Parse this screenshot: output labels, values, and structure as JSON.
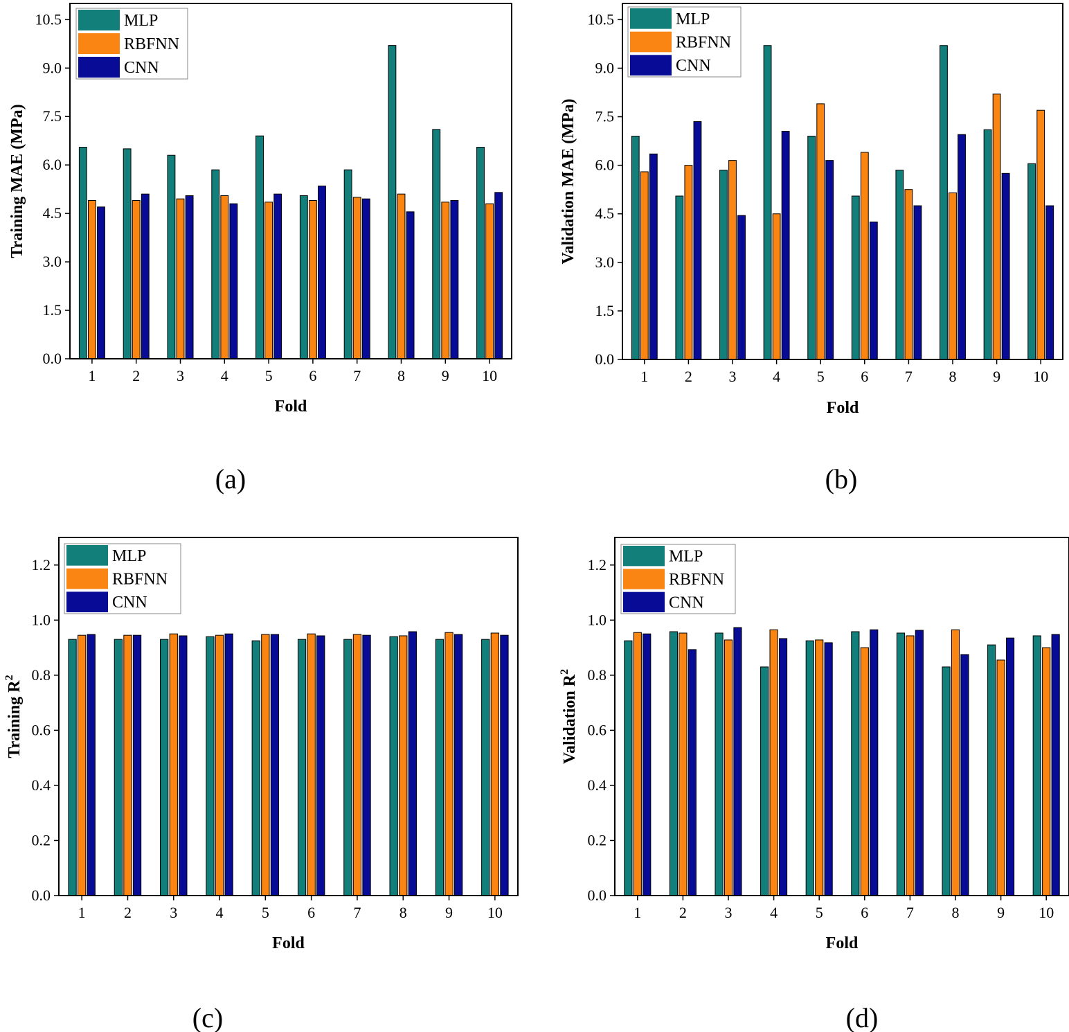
{
  "colors": {
    "MLP": "#137f7a",
    "RBFNN": "#fa8513",
    "CNN": "#080b96"
  },
  "chart_data": [
    {
      "type": "bar",
      "caption": "(a)",
      "xlabel": "Fold",
      "ylabel": "Training MAE (MPa)",
      "categories": [
        "1",
        "2",
        "3",
        "4",
        "5",
        "6",
        "7",
        "8",
        "9",
        "10"
      ],
      "yticks": [
        "0.0",
        "1.5",
        "3.0",
        "4.5",
        "6.0",
        "7.5",
        "9.0",
        "10.5"
      ],
      "ylim": [
        0,
        11
      ],
      "legend_position": "top-left",
      "series": [
        {
          "name": "MLP",
          "values": [
            6.55,
            6.5,
            6.3,
            5.85,
            6.9,
            5.05,
            5.85,
            9.7,
            7.1,
            6.55
          ]
        },
        {
          "name": "RBFNN",
          "values": [
            4.9,
            4.9,
            4.95,
            5.05,
            4.85,
            4.9,
            5.0,
            5.1,
            4.85,
            4.8
          ]
        },
        {
          "name": "CNN",
          "values": [
            4.7,
            5.1,
            5.05,
            4.8,
            5.1,
            5.35,
            4.95,
            4.55,
            4.9,
            5.15
          ]
        }
      ]
    },
    {
      "type": "bar",
      "caption": "(b)",
      "xlabel": "Fold",
      "ylabel": "Validation MAE (MPa)",
      "categories": [
        "1",
        "2",
        "3",
        "4",
        "5",
        "6",
        "7",
        "8",
        "9",
        "10"
      ],
      "yticks": [
        "0.0",
        "1.5",
        "3.0",
        "4.5",
        "6.0",
        "7.5",
        "9.0",
        "10.5"
      ],
      "ylim": [
        0,
        11
      ],
      "legend_position": "top-left",
      "series": [
        {
          "name": "MLP",
          "values": [
            6.9,
            5.05,
            5.85,
            9.7,
            6.9,
            5.05,
            5.85,
            9.7,
            7.1,
            6.05
          ]
        },
        {
          "name": "RBFNN",
          "values": [
            5.8,
            6.0,
            6.15,
            4.5,
            7.9,
            6.4,
            5.25,
            5.15,
            8.2,
            7.7
          ]
        },
        {
          "name": "CNN",
          "values": [
            6.35,
            7.35,
            4.45,
            7.05,
            6.15,
            4.25,
            4.75,
            6.95,
            5.75,
            4.75
          ]
        }
      ]
    },
    {
      "type": "bar",
      "caption": "(c)",
      "xlabel": "Fold",
      "ylabel": "Training R",
      "ylabel_sup": "2",
      "categories": [
        "1",
        "2",
        "3",
        "4",
        "5",
        "6",
        "7",
        "8",
        "9",
        "10"
      ],
      "yticks": [
        "0.0",
        "0.2",
        "0.4",
        "0.6",
        "0.8",
        "1.0",
        "1.2"
      ],
      "ylim": [
        0,
        1.3
      ],
      "legend_position": "top-left",
      "series": [
        {
          "name": "MLP",
          "values": [
            0.93,
            0.93,
            0.93,
            0.94,
            0.925,
            0.93,
            0.93,
            0.94,
            0.93,
            0.93
          ]
        },
        {
          "name": "RBFNN",
          "values": [
            0.945,
            0.945,
            0.95,
            0.945,
            0.948,
            0.95,
            0.948,
            0.943,
            0.955,
            0.953
          ]
        },
        {
          "name": "CNN",
          "values": [
            0.948,
            0.945,
            0.943,
            0.95,
            0.948,
            0.943,
            0.945,
            0.958,
            0.948,
            0.945
          ]
        }
      ]
    },
    {
      "type": "bar",
      "caption": "(d)",
      "xlabel": "Fold",
      "ylabel": "Validation R",
      "ylabel_sup": "2",
      "categories": [
        "1",
        "2",
        "3",
        "4",
        "5",
        "6",
        "7",
        "8",
        "9",
        "10"
      ],
      "yticks": [
        "0.0",
        "0.2",
        "0.4",
        "0.6",
        "0.8",
        "1.0",
        "1.2"
      ],
      "ylim": [
        0,
        1.3
      ],
      "legend_position": "top-left",
      "series": [
        {
          "name": "MLP",
          "values": [
            0.925,
            0.958,
            0.953,
            0.83,
            0.925,
            0.958,
            0.953,
            0.83,
            0.91,
            0.943
          ]
        },
        {
          "name": "RBFNN",
          "values": [
            0.955,
            0.953,
            0.928,
            0.965,
            0.928,
            0.9,
            0.943,
            0.965,
            0.855,
            0.9
          ]
        },
        {
          "name": "CNN",
          "values": [
            0.95,
            0.893,
            0.973,
            0.933,
            0.918,
            0.965,
            0.963,
            0.875,
            0.935,
            0.948
          ]
        }
      ]
    }
  ]
}
